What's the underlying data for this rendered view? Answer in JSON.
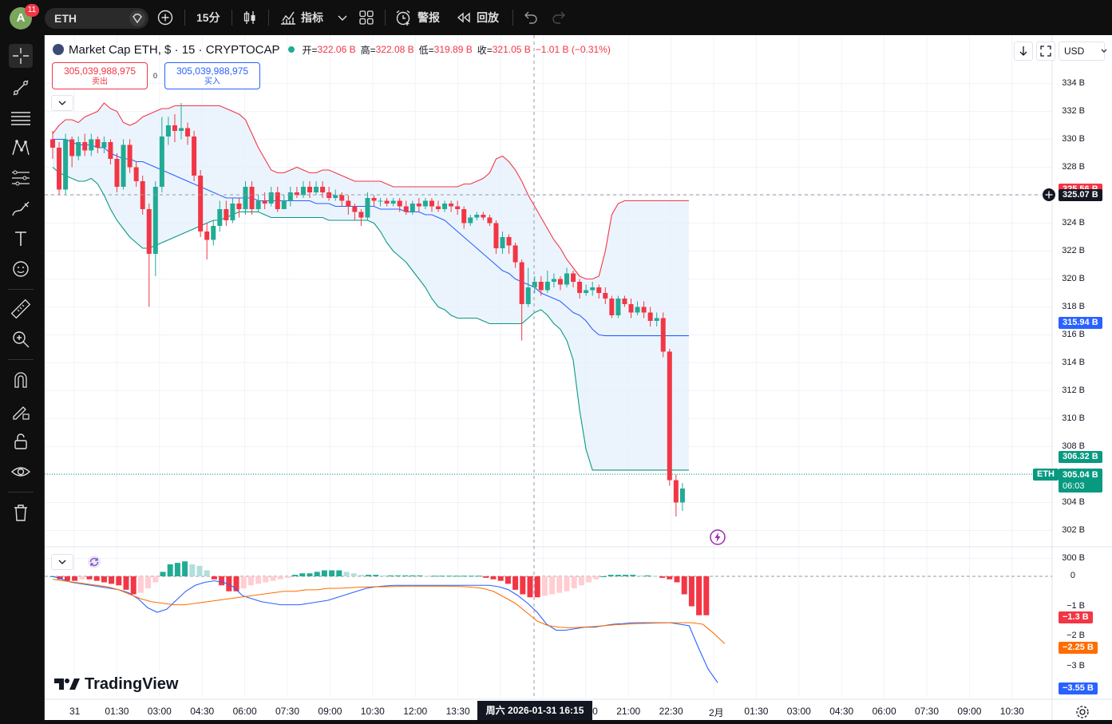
{
  "topbar": {
    "avatar_letter": "A",
    "notification_count": "11",
    "symbol": "ETH",
    "interval": "15分",
    "indicators_label": "指标",
    "alerts_label": "警报",
    "replay_label": "回放"
  },
  "legend": {
    "title": "Market Cap ETH, $ · 15 · CRYPTOCAP",
    "open_key": "开=",
    "open": "322.06 B",
    "high_key": "高=",
    "high": "322.08 B",
    "low_key": "低=",
    "low": "319.89 B",
    "close_key": "收=",
    "close": "321.05 B",
    "change": "−1.01 B (−0.31%)"
  },
  "trade": {
    "sell_value": "305,039,988,975",
    "sell_label": "卖出",
    "spread": "0",
    "buy_value": "305,039,988,975",
    "buy_label": "买入"
  },
  "currency": "USD",
  "price_axis": {
    "ticks": [
      "334 B",
      "332 B",
      "330 B",
      "328 B",
      "326 B",
      "324 B",
      "322 B",
      "320 B",
      "318 B",
      "316 B",
      "314 B",
      "312 B",
      "310 B",
      "308 B",
      "306 B",
      "304 B",
      "302 B",
      "300 B"
    ],
    "crosshair_price": "325.07 B",
    "upper_band_label": "325.56 B",
    "middle_band_label": "315.94 B",
    "lower_band_label": "306.32 B",
    "last_price_symbol": "ETH",
    "last_price": "305.04 B",
    "countdown": "06:03"
  },
  "macd_axis": {
    "ticks": [
      "0",
      "−1 B",
      "−2 B",
      "−3 B"
    ],
    "histogram_label": "−1.3 B",
    "signal_label": "−2.25 B",
    "macd_label": "−3.55 B"
  },
  "time_axis": {
    "ticks": [
      "31",
      "01:30",
      "03:00",
      "04:30",
      "06:00",
      "07:30",
      "09:00",
      "10:30",
      "12:00",
      "13:30",
      "",
      "",
      "19:30",
      "21:00",
      "22:30",
      "2月",
      "01:30",
      "03:00",
      "04:30",
      "06:00",
      "07:30",
      "09:00",
      "10:30"
    ],
    "crosshair_date": "周六 2026-01-31   16:15"
  },
  "branding": "TradingView",
  "colors": {
    "up": "#22ab94",
    "down": "#f23645",
    "bb_upper": "#f23645",
    "bb_middle": "#2962ff",
    "bb_lower": "#089981",
    "bb_fill": "#e3f0fc",
    "macd_line": "#2962ff",
    "signal_line": "#ff6d00",
    "hist_up_strong": "#22ab94",
    "hist_up_weak": "#b2dfdb",
    "hist_down_strong": "#f23645",
    "hist_down_weak": "#ffcdd2"
  },
  "chart_data": {
    "type": "candlestick",
    "unit": "B USD",
    "price_ylim": [
      300,
      335
    ],
    "candles": [
      [
        330.0,
        329.4,
        330.6,
        328.6
      ],
      [
        329.4,
        326.4,
        329.8,
        326.0
      ],
      [
        326.4,
        330.0,
        330.4,
        326.0
      ],
      [
        330.0,
        328.8,
        330.2,
        328.0
      ],
      [
        328.8,
        329.8,
        330.2,
        328.5
      ],
      [
        329.8,
        329.2,
        330.4,
        328.8
      ],
      [
        329.2,
        330.0,
        330.4,
        328.8
      ],
      [
        330.0,
        329.4,
        330.2,
        329.0
      ],
      [
        329.4,
        329.8,
        330.2,
        329.0
      ],
      [
        329.8,
        328.6,
        330.0,
        328.2
      ],
      [
        328.6,
        326.6,
        329.0,
        326.2
      ],
      [
        326.6,
        329.6,
        330.0,
        326.4
      ],
      [
        329.6,
        328.0,
        330.0,
        327.6
      ],
      [
        328.0,
        327.0,
        328.4,
        326.6
      ],
      [
        327.0,
        325.0,
        327.4,
        324.6
      ],
      [
        325.0,
        321.8,
        325.4,
        318.0
      ],
      [
        321.8,
        326.6,
        327.0,
        320.2
      ],
      [
        326.6,
        330.2,
        331.6,
        326.2
      ],
      [
        330.2,
        331.0,
        331.6,
        329.6
      ],
      [
        331.0,
        330.6,
        331.8,
        329.8
      ],
      [
        330.6,
        330.8,
        332.6,
        330.0
      ],
      [
        330.8,
        330.2,
        331.2,
        329.6
      ],
      [
        330.2,
        327.4,
        330.6,
        327.0
      ],
      [
        327.4,
        323.4,
        327.8,
        323.0
      ],
      [
        323.4,
        322.8,
        324.0,
        321.4
      ],
      [
        322.8,
        323.8,
        324.2,
        322.4
      ],
      [
        323.8,
        325.0,
        325.6,
        323.4
      ],
      [
        325.0,
        324.2,
        325.6,
        323.8
      ],
      [
        324.2,
        325.4,
        325.8,
        324.0
      ],
      [
        325.4,
        325.0,
        325.8,
        324.4
      ],
      [
        325.0,
        326.6,
        327.0,
        324.6
      ],
      [
        326.6,
        325.0,
        327.0,
        324.6
      ],
      [
        325.0,
        325.6,
        326.0,
        324.8
      ],
      [
        325.6,
        325.4,
        326.2,
        325.0
      ],
      [
        325.4,
        326.2,
        326.6,
        325.2
      ],
      [
        326.2,
        325.0,
        326.6,
        324.8
      ],
      [
        325.0,
        325.6,
        326.0,
        325.2
      ],
      [
        325.6,
        326.2,
        326.6,
        325.2
      ],
      [
        326.2,
        326.0,
        326.6,
        325.8
      ],
      [
        326.0,
        326.6,
        327.0,
        325.8
      ],
      [
        326.6,
        326.2,
        327.0,
        325.8
      ],
      [
        326.2,
        326.6,
        327.0,
        326.0
      ],
      [
        326.6,
        326.2,
        327.0,
        325.8
      ],
      [
        326.2,
        325.8,
        326.6,
        325.6
      ],
      [
        325.8,
        326.0,
        326.4,
        325.6
      ],
      [
        326.0,
        325.6,
        326.2,
        325.2
      ],
      [
        325.6,
        325.2,
        326.0,
        324.6
      ],
      [
        325.2,
        324.8,
        325.4,
        324.2
      ],
      [
        324.8,
        324.4,
        325.0,
        323.8
      ],
      [
        324.4,
        325.8,
        326.2,
        324.2
      ],
      [
        325.8,
        325.6,
        326.0,
        325.2
      ],
      [
        325.6,
        325.6,
        325.8,
        325.2
      ],
      [
        325.6,
        325.4,
        325.8,
        325.2
      ],
      [
        325.4,
        325.6,
        325.8,
        325.2
      ],
      [
        325.6,
        325.2,
        325.8,
        324.8
      ],
      [
        325.2,
        324.8,
        325.6,
        324.6
      ],
      [
        324.8,
        325.4,
        325.6,
        324.6
      ],
      [
        325.4,
        325.2,
        325.8,
        324.8
      ],
      [
        325.2,
        325.6,
        325.8,
        325.0
      ],
      [
        325.6,
        325.2,
        325.8,
        324.8
      ],
      [
        325.2,
        325.0,
        325.6,
        324.8
      ],
      [
        325.0,
        325.4,
        325.6,
        324.8
      ],
      [
        325.4,
        325.2,
        325.6,
        324.8
      ],
      [
        325.2,
        325.0,
        325.6,
        324.6
      ],
      [
        325.0,
        324.0,
        325.2,
        323.6
      ],
      [
        324.0,
        324.4,
        324.6,
        323.8
      ],
      [
        324.4,
        324.6,
        324.8,
        324.2
      ],
      [
        324.6,
        324.4,
        324.8,
        324.2
      ],
      [
        324.4,
        324.0,
        324.6,
        323.8
      ],
      [
        324.0,
        322.2,
        324.2,
        321.8
      ],
      [
        322.2,
        323.0,
        323.4,
        321.8
      ],
      [
        323.0,
        322.4,
        323.2,
        321.8
      ],
      [
        322.4,
        321.2,
        322.6,
        320.8
      ],
      [
        321.2,
        318.2,
        321.4,
        315.6
      ],
      [
        318.2,
        319.4,
        320.8,
        318.0
      ],
      [
        319.4,
        319.8,
        320.2,
        319.0
      ],
      [
        319.8,
        319.2,
        320.2,
        318.8
      ],
      [
        319.2,
        319.8,
        320.6,
        319.0
      ],
      [
        319.8,
        320.0,
        320.4,
        319.4
      ],
      [
        320.0,
        319.6,
        320.2,
        319.2
      ],
      [
        319.6,
        320.4,
        320.8,
        319.4
      ],
      [
        320.4,
        319.8,
        320.6,
        319.4
      ],
      [
        319.8,
        319.0,
        320.0,
        318.6
      ],
      [
        319.0,
        319.2,
        319.6,
        318.8
      ],
      [
        319.2,
        319.4,
        319.8,
        318.8
      ],
      [
        319.4,
        319.0,
        319.6,
        318.6
      ],
      [
        319.0,
        318.6,
        319.4,
        318.2
      ],
      [
        318.6,
        317.4,
        318.8,
        317.2
      ],
      [
        317.4,
        318.6,
        318.8,
        317.2
      ],
      [
        318.6,
        318.2,
        318.8,
        318.0
      ],
      [
        318.2,
        317.6,
        318.6,
        317.2
      ],
      [
        317.6,
        318.0,
        318.4,
        317.4
      ],
      [
        318.0,
        317.6,
        318.4,
        317.2
      ],
      [
        317.6,
        317.0,
        318.0,
        316.6
      ],
      [
        317.0,
        317.2,
        317.6,
        316.6
      ],
      [
        317.2,
        314.8,
        317.6,
        314.4
      ],
      [
        314.8,
        305.6,
        315.0,
        305.2
      ],
      [
        305.6,
        304.0,
        306.0,
        303.0
      ],
      [
        304.0,
        305.0,
        305.4,
        303.4
      ]
    ],
    "bollinger": {
      "upper": [
        330.4,
        331.0,
        331.4,
        331.4,
        331.2,
        331.6,
        331.8,
        332.0,
        332.6,
        332.2,
        332.0,
        331.2,
        331.0,
        331.2,
        331.6,
        331.8,
        332.0,
        332.2,
        332.2,
        332.4,
        332.4,
        332.4,
        332.4,
        332.4,
        332.4,
        332.4,
        332.4,
        332.2,
        332.0,
        331.8,
        331.4,
        330.4,
        329.4,
        328.6,
        327.8,
        327.6,
        327.6,
        327.8,
        328.0,
        327.8,
        327.6,
        327.6,
        327.8,
        327.8,
        327.6,
        327.4,
        327.2,
        327.0,
        327.0,
        327.0,
        327.0,
        327.0,
        326.8,
        326.6,
        326.6,
        326.6,
        326.6,
        326.6,
        326.6,
        326.6,
        326.6,
        326.6,
        326.6,
        326.6,
        326.8,
        326.8,
        327.0,
        327.2,
        327.6,
        328.6,
        328.8,
        328.4,
        327.8,
        327.0,
        326.0,
        325.2,
        324.4,
        323.6,
        322.8,
        322.2,
        321.4,
        320.8,
        320.2,
        320.0,
        320.0,
        320.2,
        322.0,
        324.6,
        325.4,
        325.6,
        325.6,
        325.6,
        325.6,
        325.6,
        325.6,
        325.6,
        325.6,
        325.6,
        325.6,
        325.6
      ],
      "middle": [
        330.0,
        330.0,
        330.0,
        329.8,
        329.6,
        329.6,
        329.6,
        329.4,
        329.4,
        329.0,
        328.8,
        328.6,
        328.6,
        328.4,
        328.4,
        328.2,
        328.0,
        327.8,
        327.6,
        327.4,
        327.2,
        327.0,
        326.8,
        326.6,
        326.4,
        326.2,
        326.0,
        325.8,
        325.8,
        325.8,
        325.8,
        325.8,
        325.6,
        325.6,
        325.6,
        325.6,
        325.6,
        325.6,
        325.6,
        325.6,
        325.6,
        325.4,
        325.4,
        325.4,
        325.2,
        325.2,
        325.2,
        325.2,
        325.2,
        325.2,
        325.2,
        325.0,
        325.0,
        325.0,
        325.0,
        324.8,
        324.8,
        324.8,
        324.6,
        324.6,
        324.4,
        324.2,
        323.8,
        323.4,
        323.0,
        322.6,
        322.2,
        321.8,
        321.4,
        321.0,
        320.6,
        320.4,
        320.0,
        319.8,
        319.6,
        319.4,
        319.0,
        318.8,
        318.6,
        318.4,
        318.0,
        317.6,
        317.4,
        317.0,
        316.4,
        316.0,
        315.94,
        315.94,
        315.94,
        315.94,
        315.94,
        315.94,
        315.94,
        315.94,
        315.94,
        315.94,
        315.94,
        315.94,
        315.94,
        315.94
      ],
      "lower": [
        328.0,
        327.6,
        327.4,
        327.2,
        327.0,
        327.0,
        327.2,
        326.8,
        326.0,
        325.0,
        324.2,
        323.6,
        323.0,
        322.6,
        322.2,
        322.2,
        322.4,
        322.6,
        322.8,
        323.0,
        323.2,
        323.4,
        323.6,
        323.8,
        324.0,
        324.2,
        324.2,
        324.4,
        324.6,
        324.8,
        324.8,
        324.8,
        324.8,
        324.6,
        324.4,
        324.4,
        324.4,
        324.4,
        324.4,
        324.4,
        324.4,
        324.4,
        324.4,
        324.2,
        324.2,
        324.2,
        324.2,
        324.2,
        324.2,
        324.2,
        324.0,
        323.4,
        322.6,
        322.0,
        321.6,
        321.2,
        320.6,
        320.0,
        319.4,
        318.6,
        318.0,
        317.8,
        317.4,
        317.2,
        317.2,
        317.2,
        317.2,
        317.0,
        316.8,
        316.8,
        316.8,
        316.8,
        316.8,
        316.8,
        317.2,
        317.6,
        317.8,
        317.4,
        316.8,
        316.4,
        315.6,
        314.2,
        310.6,
        307.8,
        306.32,
        306.32,
        306.32,
        306.32,
        306.32,
        306.32,
        306.32,
        306.32,
        306.32,
        306.32,
        306.32,
        306.32,
        306.32,
        306.32,
        306.32,
        306.32
      ]
    },
    "macd": {
      "ylim": [
        -3.9,
        0.6
      ],
      "histogram": [
        0.0,
        -0.1,
        -0.15,
        -0.15,
        -0.1,
        -0.1,
        -0.15,
        -0.2,
        -0.25,
        -0.3,
        -0.45,
        -0.6,
        -0.55,
        -0.4,
        -0.2,
        0.15,
        0.4,
        0.45,
        0.5,
        0.4,
        0.35,
        0.2,
        -0.1,
        -0.3,
        -0.5,
        -0.5,
        -0.4,
        -0.3,
        -0.25,
        -0.2,
        -0.15,
        -0.1,
        -0.05,
        0.05,
        0.1,
        0.1,
        0.15,
        0.2,
        0.2,
        0.2,
        0.15,
        0.1,
        0.05,
        0.05,
        0.05,
        0.03,
        0.03,
        0.03,
        0.03,
        0.03,
        0.03,
        0.02,
        0.02,
        0.02,
        0.02,
        0.02,
        0.02,
        0.02,
        0.02,
        -0.05,
        -0.1,
        -0.15,
        -0.25,
        -0.45,
        -0.6,
        -0.7,
        -0.7,
        -0.65,
        -0.6,
        -0.55,
        -0.5,
        -0.4,
        -0.3,
        -0.2,
        -0.1,
        0.0,
        0.05,
        0.05,
        0.05,
        0.05,
        0.03,
        0.03,
        0.02,
        -0.05,
        -0.1,
        -0.2,
        -0.6,
        -1.0,
        -1.3,
        -1.3
      ],
      "macd": [
        0.0,
        -0.1,
        -0.2,
        -0.25,
        -0.3,
        -0.35,
        -0.4,
        -0.45,
        -0.55,
        -0.75,
        -1.05,
        -1.2,
        -1.1,
        -0.8,
        -0.5,
        -0.3,
        -0.2,
        -0.15,
        -0.2,
        -0.35,
        -0.65,
        -0.75,
        -0.85,
        -0.9,
        -0.95,
        -0.95,
        -0.95,
        -0.9,
        -0.85,
        -0.8,
        -0.7,
        -0.6,
        -0.5,
        -0.4,
        -0.35,
        -0.32,
        -0.3,
        -0.3,
        -0.3,
        -0.3,
        -0.3,
        -0.3,
        -0.3,
        -0.3,
        -0.3,
        -0.3,
        -0.3,
        -0.35,
        -0.45,
        -0.65,
        -0.9,
        -1.2,
        -1.6,
        -1.8,
        -1.8,
        -1.75,
        -1.7,
        -1.7,
        -1.65,
        -1.6,
        -1.58,
        -1.55,
        -1.55,
        -1.55,
        -1.55,
        -1.55,
        -1.6,
        -1.65,
        -2.4,
        -3.1,
        -3.55
      ],
      "signal": [
        -0.1,
        -0.15,
        -0.2,
        -0.25,
        -0.3,
        -0.35,
        -0.45,
        -0.6,
        -0.75,
        -0.85,
        -0.9,
        -0.95,
        -0.95,
        -0.9,
        -0.85,
        -0.8,
        -0.75,
        -0.7,
        -0.65,
        -0.6,
        -0.55,
        -0.5,
        -0.5,
        -0.45,
        -0.45,
        -0.4,
        -0.4,
        -0.38,
        -0.36,
        -0.35,
        -0.35,
        -0.34,
        -0.33,
        -0.33,
        -0.33,
        -0.33,
        -0.33,
        -0.34,
        -0.36,
        -0.4,
        -0.5,
        -0.7,
        -0.9,
        -1.2,
        -1.5,
        -1.65,
        -1.7,
        -1.72,
        -1.7,
        -1.68,
        -1.65,
        -1.62,
        -1.6,
        -1.58,
        -1.57,
        -1.56,
        -1.55,
        -1.55,
        -1.55,
        -1.6,
        -1.9,
        -2.25
      ]
    }
  }
}
